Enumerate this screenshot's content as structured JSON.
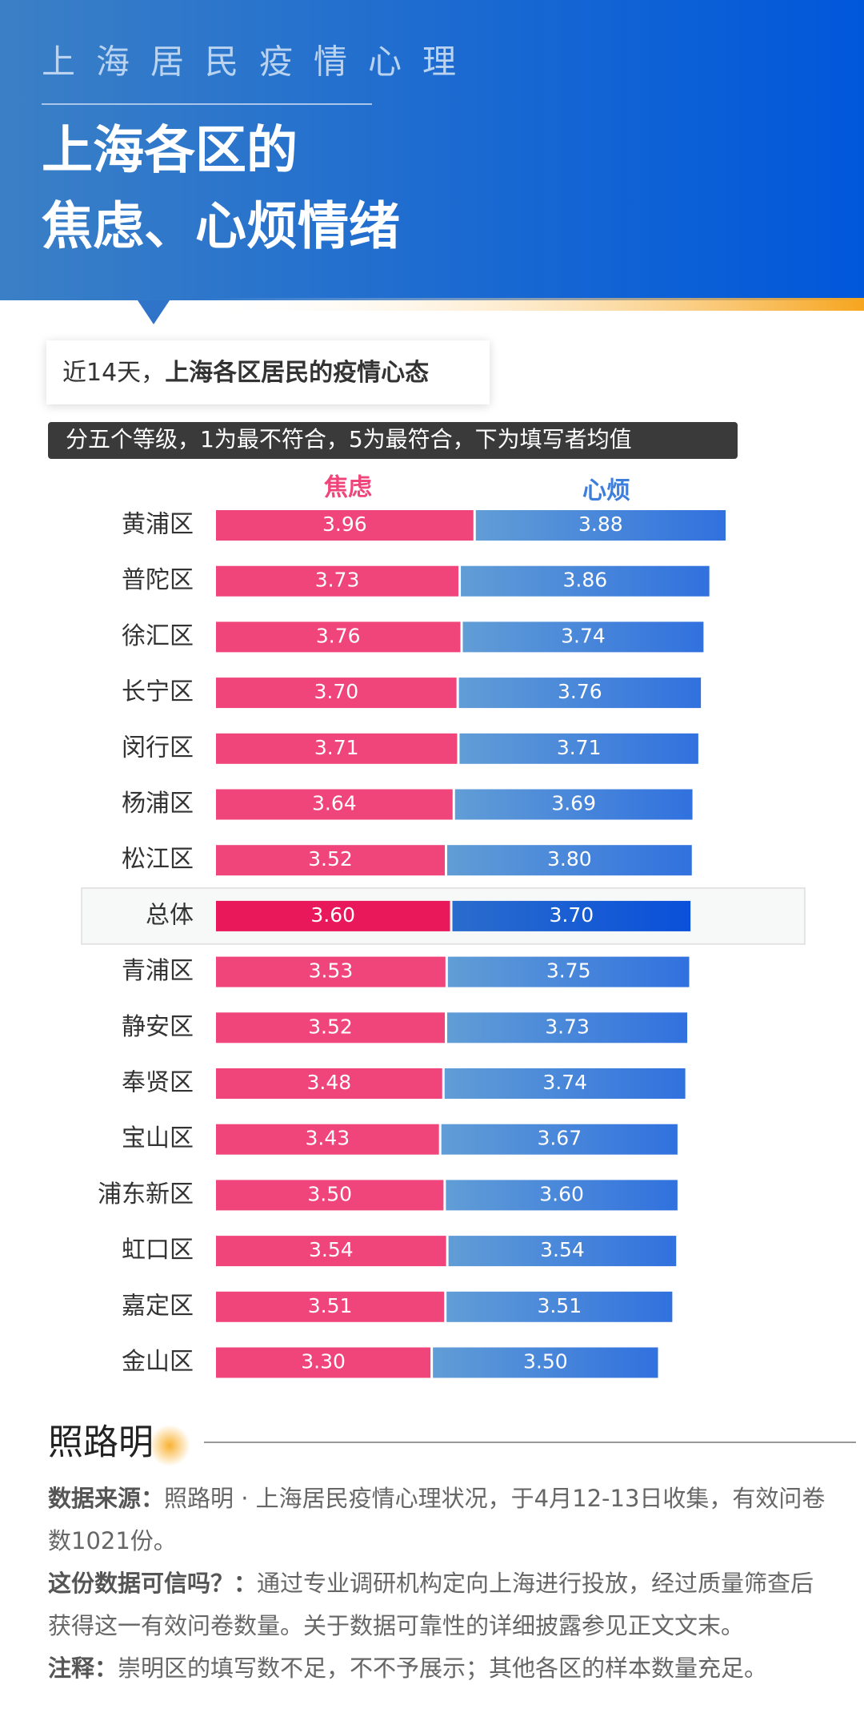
{
  "header": {
    "kicker": "上海居民疫情心理",
    "title_lines": [
      "上海各区的",
      "焦虑、心烦情绪"
    ]
  },
  "chart_data": {
    "type": "bar",
    "orientation": "horizontal",
    "stacked": true,
    "title_parts": [
      "近14天，",
      "上海各区居民的疫情心态"
    ],
    "subtitle": "分五个等级，1为最不符合，5为最符合，下为填写者均值",
    "categories": [
      "黄浦区",
      "普陀区",
      "徐汇区",
      "长宁区",
      "闵行区",
      "杨浦区",
      "松江区",
      "总体",
      "青浦区",
      "静安区",
      "奉贤区",
      "宝山区",
      "浦东新区",
      "虹口区",
      "嘉定区",
      "金山区"
    ],
    "series": [
      {
        "name": "焦虑",
        "color": "#f0457a",
        "highlight_color": "#e8185a",
        "values": [
          3.96,
          3.73,
          3.76,
          3.7,
          3.71,
          3.64,
          3.52,
          3.6,
          3.53,
          3.52,
          3.48,
          3.43,
          3.5,
          3.54,
          3.51,
          3.3
        ],
        "value_labels": [
          "3.96",
          "3.73",
          "3.76",
          "3.70",
          "3.71",
          "3.64",
          "3.52",
          "3.60",
          "3.53",
          "3.52",
          "3.48",
          "3.43",
          "3.50",
          "3.54",
          "3.51",
          "3.30"
        ]
      },
      {
        "name": "心烦",
        "color": "#3f7fdc",
        "highlight_color": "#0a52d6",
        "values": [
          3.88,
          3.86,
          3.74,
          3.76,
          3.71,
          3.69,
          3.8,
          3.7,
          3.75,
          3.73,
          3.74,
          3.67,
          3.6,
          3.54,
          3.51,
          3.5
        ],
        "value_labels": [
          "3.88",
          "3.86",
          "3.74",
          "3.76",
          "3.71",
          "3.69",
          "3.80",
          "3.70",
          "3.75",
          "3.73",
          "3.74",
          "3.67",
          "3.60",
          "3.54",
          "3.51",
          "3.50"
        ]
      }
    ],
    "highlight": "总体",
    "xlim": [
      0,
      8
    ]
  },
  "footer": {
    "logo": "照路明",
    "notes": [
      {
        "label": "数据来源：",
        "text": "照路明 · 上海居民疫情心理状况，于4月12-13日收集，有效问卷数1021份。"
      },
      {
        "label": "这份数据可信吗？：",
        "text": "通过专业调研机构定向上海进行投放，经过质量筛查后获得这一有效问卷数量。关于数据可靠性的详细披露参见正文文末。"
      },
      {
        "label": "注释：",
        "text": "崇明区的填写数不足，不不予展示；其他各区的样本数量充足。"
      }
    ]
  }
}
